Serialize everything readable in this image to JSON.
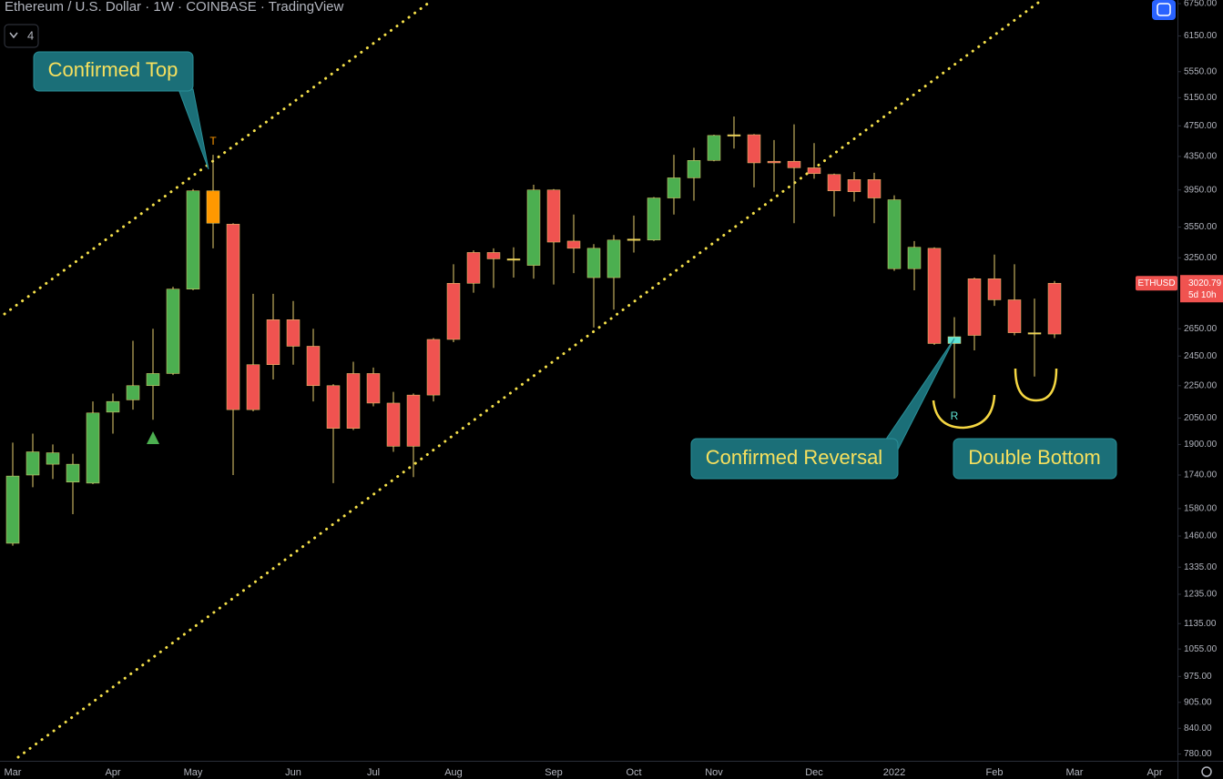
{
  "header": {
    "title": "Ethereum / U.S. Dollar · 1W · COINBASE · TradingView",
    "indicator_count": 4
  },
  "chart_data": {
    "type": "candlestick",
    "categories": [
      "Mar",
      null,
      null,
      null,
      null,
      "Apr",
      null,
      null,
      null,
      "May",
      null,
      null,
      null,
      null,
      "Jun",
      null,
      null,
      null,
      "Jul",
      null,
      null,
      null,
      "Aug",
      null,
      null,
      null,
      null,
      "Sep",
      null,
      null,
      null,
      "Oct",
      null,
      null,
      null,
      "Nov",
      null,
      null,
      null,
      null,
      "Dec",
      null,
      null,
      null,
      "2022",
      null,
      null,
      null,
      null,
      "Feb",
      null,
      null,
      null,
      "Mar",
      null,
      null,
      null,
      "Apr",
      null
    ],
    "open": [
      1430,
      1740,
      1795,
      1705,
      1700,
      2085,
      2160,
      2250,
      2330,
      2970,
      3940,
      3580,
      2390,
      2720,
      2720,
      2520,
      2250,
      2330,
      2330,
      2140,
      2190,
      2570,
      3020,
      3300,
      3300,
      3240,
      3180,
      3950,
      3410,
      3070,
      3070,
      3420,
      3420,
      3860,
      4090,
      4300,
      4620,
      4630,
      4290,
      4290,
      4210,
      4130,
      4070,
      4070,
      3150,
      3150,
      3340,
      2540,
      3060,
      3060,
      2880,
      2620,
      2610,
      null,
      null,
      null,
      null,
      null,
      null
    ],
    "high": [
      1910,
      1960,
      1900,
      1850,
      2150,
      2200,
      2560,
      2650,
      2990,
      3960,
      4370,
      3590,
      2930,
      2930,
      2870,
      2650,
      2260,
      2410,
      2370,
      2210,
      2200,
      2580,
      3190,
      3320,
      3340,
      3350,
      4010,
      3960,
      3680,
      3380,
      3470,
      3670,
      3870,
      4370,
      4460,
      4630,
      4880,
      4640,
      4560,
      4770,
      4520,
      4140,
      4160,
      4150,
      3890,
      3410,
      3350,
      2740,
      3070,
      3280,
      3190,
      2890,
      3040,
      null,
      null,
      null,
      null,
      null,
      null
    ],
    "low": [
      1420,
      1680,
      1720,
      1555,
      1695,
      1960,
      2100,
      2040,
      2320,
      2960,
      3340,
      1740,
      2090,
      2290,
      2390,
      2150,
      1700,
      1980,
      2120,
      1860,
      1730,
      2150,
      2550,
      2940,
      2980,
      3070,
      3060,
      3010,
      3110,
      2660,
      2800,
      3300,
      3410,
      3680,
      3830,
      4290,
      4450,
      3980,
      3930,
      3590,
      4080,
      3660,
      3820,
      3590,
      3130,
      2960,
      2530,
      2170,
      2490,
      2830,
      2600,
      2310,
      2580,
      null,
      null,
      null,
      null,
      null,
      null
    ],
    "close": [
      1735,
      1860,
      1855,
      1795,
      2080,
      2150,
      2250,
      2330,
      2970,
      3940,
      3590,
      2100,
      2100,
      2390,
      2520,
      2250,
      1990,
      1990,
      2140,
      1890,
      1890,
      2190,
      2570,
      3020,
      3240,
      3230,
      3950,
      3400,
      3340,
      3340,
      3420,
      3430,
      3860,
      4090,
      4300,
      4620,
      4630,
      4270,
      4270,
      4210,
      4140,
      3940,
      3930,
      3860,
      3840,
      3350,
      2540,
      2590,
      2600,
      2880,
      2620,
      2610,
      3020.79,
      null,
      null,
      null,
      null,
      null,
      null
    ],
    "colors": [
      "#4caf50",
      "#4caf50",
      "#4caf50",
      "#4caf50",
      "#4caf50",
      "#4caf50",
      "#4caf50",
      "#4caf50",
      "#4caf50",
      "#4caf50",
      "#ff9800",
      "#f05350",
      "#f05350",
      "#f05350",
      "#f05350",
      "#f05350",
      "#f05350",
      "#f05350",
      "#f05350",
      "#f05350",
      "#f05350",
      "#f05350",
      "#f05350",
      "#f05350",
      "#f05350",
      "#f0d64a",
      "#4caf50",
      "#f05350",
      "#f05350",
      "#4caf50",
      "#4caf50",
      "#f0d64a",
      "#4caf50",
      "#4caf50",
      "#4caf50",
      "#4caf50",
      "#f0d64a",
      "#f05350",
      "#f05350",
      "#f05350",
      "#f05350",
      "#f05350",
      "#f05350",
      "#f05350",
      "#4caf50",
      "#4caf50",
      "#f05350",
      "#5fe3d4",
      "#f05350",
      "#f05350",
      "#f05350",
      "#f0d64a",
      "#f05350",
      null,
      null,
      null,
      null,
      null,
      null
    ],
    "wick_color": "#e8d170",
    "ylim": [
      765,
      6821
    ],
    "log_scale": true,
    "grid": false,
    "yticks": [
      {
        "value": 780,
        "label": "780.00"
      },
      {
        "value": 840,
        "label": "840.00"
      },
      {
        "value": 905,
        "label": "905.00"
      },
      {
        "value": 975,
        "label": "975.00"
      },
      {
        "value": 1055,
        "label": "1055.00"
      },
      {
        "value": 1135,
        "label": "1135.00"
      },
      {
        "value": 1235,
        "label": "1235.00"
      },
      {
        "value": 1335,
        "label": "1335.00"
      },
      {
        "value": 1460,
        "label": "1460.00"
      },
      {
        "value": 1580,
        "label": "1580.00"
      },
      {
        "value": 1740,
        "label": "1740.00"
      },
      {
        "value": 1900,
        "label": "1900.00"
      },
      {
        "value": 2050,
        "label": "2050.00"
      },
      {
        "value": 2250,
        "label": "2250.00"
      },
      {
        "value": 2450,
        "label": "2450.00"
      },
      {
        "value": 2650,
        "label": "2650.00"
      },
      {
        "value": 3250,
        "label": "3250.00"
      },
      {
        "value": 3550,
        "label": "3550.00"
      },
      {
        "value": 3950,
        "label": "3950.00"
      },
      {
        "value": 4350,
        "label": "4350.00"
      },
      {
        "value": 4750,
        "label": "4750.00"
      },
      {
        "value": 5150,
        "label": "5150.00"
      },
      {
        "value": 5550,
        "label": "5550.00"
      },
      {
        "value": 6150,
        "label": "6150.00"
      },
      {
        "value": 6750,
        "label": "6750.00"
      }
    ],
    "last_price": {
      "symbol": "ETHUSD",
      "price": 3020.79,
      "countdown": "5d 10h"
    },
    "signals": [
      "T",
      "R"
    ],
    "annotations": [
      "Confirmed Top",
      "Confirmed Reversal",
      "Double Bottom"
    ]
  }
}
